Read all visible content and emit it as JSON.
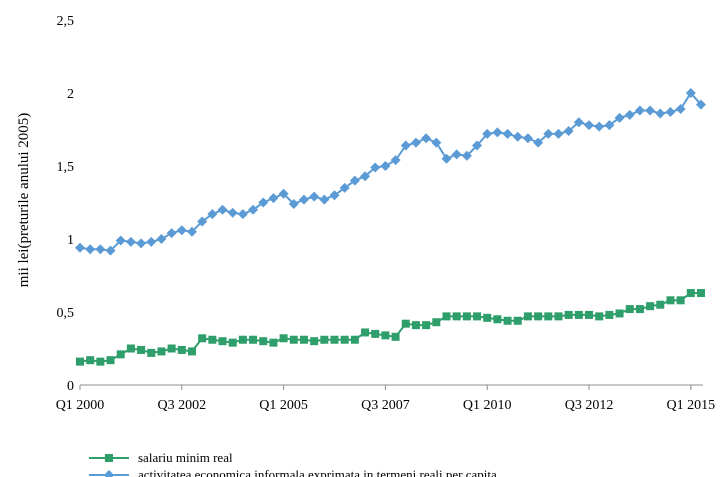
{
  "chart_data": {
    "type": "line",
    "title": "",
    "xlabel": "",
    "ylabel": "mii lei(preturile anului 2005)",
    "ylim": [
      0,
      2.5
    ],
    "yticks": [
      "0",
      "0,5",
      "1",
      "1,5",
      "2",
      "2,5"
    ],
    "ytick_values": [
      0,
      0.5,
      1,
      1.5,
      2,
      2.5
    ],
    "x_tick_labels": [
      "Q1 2000",
      "Q3 2002",
      "Q1 2005",
      "Q3 2007",
      "Q1 2010",
      "Q3 2012",
      "Q1 2015"
    ],
    "x_tick_indices": [
      0,
      10,
      20,
      30,
      40,
      50,
      60
    ],
    "x_start": "Q1 2000",
    "x_end": "Q2 2015",
    "grid": false,
    "legend_position": "bottom",
    "series": [
      {
        "name": "salariu minim real",
        "color": "#2e9e6b",
        "marker": "square",
        "values": [
          0.16,
          0.17,
          0.16,
          0.17,
          0.21,
          0.25,
          0.24,
          0.22,
          0.23,
          0.25,
          0.24,
          0.23,
          0.32,
          0.31,
          0.3,
          0.29,
          0.31,
          0.31,
          0.3,
          0.29,
          0.32,
          0.31,
          0.31,
          0.3,
          0.31,
          0.31,
          0.31,
          0.31,
          0.36,
          0.35,
          0.34,
          0.33,
          0.42,
          0.41,
          0.41,
          0.43,
          0.47,
          0.47,
          0.47,
          0.47,
          0.46,
          0.45,
          0.44,
          0.44,
          0.47,
          0.47,
          0.47,
          0.47,
          0.48,
          0.48,
          0.48,
          0.47,
          0.48,
          0.49,
          0.52,
          0.52,
          0.54,
          0.55,
          0.58,
          0.58,
          0.63,
          0.63
        ]
      },
      {
        "name": "activitatea economica informala exprimata in termeni reali per capita",
        "color": "#5b9bd5",
        "marker": "diamond",
        "values": [
          0.94,
          0.93,
          0.93,
          0.92,
          0.99,
          0.98,
          0.97,
          0.98,
          1.0,
          1.04,
          1.06,
          1.05,
          1.12,
          1.17,
          1.2,
          1.18,
          1.17,
          1.2,
          1.25,
          1.28,
          1.31,
          1.24,
          1.27,
          1.29,
          1.27,
          1.3,
          1.35,
          1.4,
          1.43,
          1.49,
          1.5,
          1.54,
          1.64,
          1.66,
          1.69,
          1.66,
          1.55,
          1.58,
          1.57,
          1.64,
          1.72,
          1.73,
          1.72,
          1.7,
          1.69,
          1.66,
          1.72,
          1.72,
          1.74,
          1.8,
          1.78,
          1.77,
          1.78,
          1.83,
          1.85,
          1.88,
          1.88,
          1.86,
          1.87,
          1.89,
          2.0,
          1.92
        ]
      }
    ]
  }
}
